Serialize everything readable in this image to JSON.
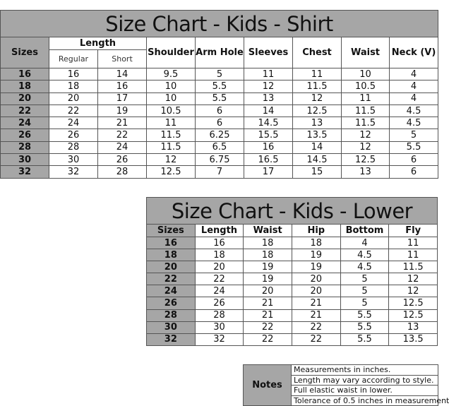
{
  "shirt": {
    "title": "Size Chart - Kids - Shirt",
    "headers": {
      "sizes": "Sizes",
      "length": "Length",
      "regular": "Regular",
      "short": "Short",
      "shoulder": "Shoulder",
      "arm_hole": "Arm Hole",
      "sleeves": "Sleeves",
      "chest": "Chest",
      "waist": "Waist",
      "neck": "Neck (V)"
    },
    "rows": [
      [
        "16",
        "16",
        "14",
        "9.5",
        "5",
        "11",
        "11",
        "10",
        "4"
      ],
      [
        "18",
        "18",
        "16",
        "10",
        "5.5",
        "12",
        "11.5",
        "10.5",
        "4"
      ],
      [
        "20",
        "20",
        "17",
        "10",
        "5.5",
        "13",
        "12",
        "11",
        "4"
      ],
      [
        "22",
        "22",
        "19",
        "10.5",
        "6",
        "14",
        "12.5",
        "11.5",
        "4.5"
      ],
      [
        "24",
        "24",
        "21",
        "11",
        "6",
        "14.5",
        "13",
        "11.5",
        "4.5"
      ],
      [
        "26",
        "26",
        "22",
        "11.5",
        "6.25",
        "15.5",
        "13.5",
        "12",
        "5"
      ],
      [
        "28",
        "28",
        "24",
        "11.5",
        "6.5",
        "16",
        "14",
        "12",
        "5.5"
      ],
      [
        "30",
        "30",
        "26",
        "12",
        "6.75",
        "16.5",
        "14.5",
        "12.5",
        "6"
      ],
      [
        "32",
        "32",
        "28",
        "12.5",
        "7",
        "17",
        "15",
        "13",
        "6"
      ]
    ]
  },
  "lower": {
    "title": "Size Chart - Kids - Lower",
    "headers": [
      "Sizes",
      "Length",
      "Waist",
      "Hip",
      "Bottom",
      "Fly"
    ],
    "rows": [
      [
        "16",
        "16",
        "18",
        "18",
        "4",
        "11"
      ],
      [
        "18",
        "18",
        "18",
        "19",
        "4.5",
        "11"
      ],
      [
        "20",
        "20",
        "19",
        "19",
        "4.5",
        "11.5"
      ],
      [
        "22",
        "22",
        "19",
        "20",
        "5",
        "12"
      ],
      [
        "24",
        "24",
        "20",
        "20",
        "5",
        "12"
      ],
      [
        "26",
        "26",
        "21",
        "21",
        "5",
        "12.5"
      ],
      [
        "28",
        "28",
        "21",
        "21",
        "5.5",
        "12.5"
      ],
      [
        "30",
        "30",
        "22",
        "22",
        "5.5",
        "13"
      ],
      [
        "32",
        "32",
        "22",
        "22",
        "5.5",
        "13.5"
      ]
    ]
  },
  "notes": {
    "label": "Notes",
    "items": [
      "Measurements in inches.",
      "Length may vary according to style.",
      "Full elastic waist in lower.",
      "Tolerance of 0.5 inches in measurement"
    ]
  },
  "colors": {
    "header_gray": "#a6a6a6"
  }
}
